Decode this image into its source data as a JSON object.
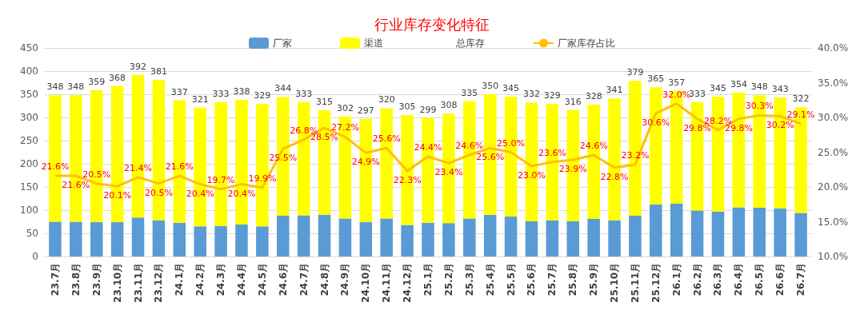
{
  "chart_data": {
    "type": "bar",
    "title": "行业库存变化特征",
    "stacked": true,
    "totals": [
      "348",
      "348",
      "359",
      "368",
      "392",
      "381",
      "337",
      "321",
      "333",
      "338",
      "329",
      "344",
      "333",
      "315",
      "302",
      "297",
      "320",
      "305",
      "299",
      "308",
      "335",
      "350",
      "345",
      "332",
      "329",
      "316",
      "328",
      "341",
      "379",
      "365",
      "357",
      "333",
      "345",
      "354",
      "348",
      "343",
      "322"
    ],
    "legend": "top",
    "grid": "y",
    "marker": "none",
    "categories": [
      "23.7月",
      "23.8月",
      "23.9月",
      "23.10月",
      "23.11月",
      "23.12月",
      "24.1月",
      "24.2月",
      "24.3月",
      "24.4月",
      "24.5月",
      "24.6月",
      "24.7月",
      "24.8月",
      "24.9月",
      "24.10月",
      "24.11月",
      "24.12月",
      "25.1月",
      "25.2月",
      "25.3月",
      "25.4月",
      "25.5月",
      "25.6月",
      "25.7月",
      "25.8月",
      "25.9月",
      "25.10月",
      "25.11月",
      "25.12月",
      "26.1月",
      "26.2月",
      "26.3月",
      "26.4月",
      "26.5月",
      "26.6月",
      "26.7月"
    ],
    "ylim": [
      0,
      450
    ],
    "yticks": [
      0,
      50,
      100,
      150,
      200,
      250,
      300,
      350,
      400,
      450
    ],
    "y2lim": [
      10,
      40
    ],
    "y2ticks": [
      {
        "value": 10,
        "label": "10.0%"
      },
      {
        "value": 15,
        "label": "15.0%"
      },
      {
        "value": 20,
        "label": "20.0%"
      },
      {
        "value": 25,
        "label": "25.0%"
      },
      {
        "value": 30,
        "label": "30.0%"
      },
      {
        "value": 35,
        "label": "35.0%"
      },
      {
        "value": 40,
        "label": "40.0%"
      }
    ],
    "series": [
      {
        "name": "厂家",
        "color": "#5b9bd5",
        "values": [
          75,
          75,
          74,
          74,
          84,
          78,
          73,
          65,
          66,
          69,
          65,
          88,
          89,
          90,
          82,
          74,
          82,
          68,
          73,
          72,
          82,
          90,
          86,
          76,
          78,
          76,
          81,
          78,
          88,
          112,
          114,
          99,
          97,
          106,
          105,
          104,
          94
        ]
      },
      {
        "name": "渠道",
        "color": "#ffff00",
        "values": [
          273,
          273,
          285,
          294,
          308,
          303,
          264,
          256,
          267,
          269,
          264,
          256,
          244,
          225,
          220,
          223,
          238,
          237,
          226,
          236,
          253,
          260,
          259,
          256,
          251,
          240,
          247,
          263,
          291,
          253,
          243,
          234,
          248,
          248,
          243,
          239,
          228
        ]
      },
      {
        "name": "总库存",
        "type": "line",
        "color": null,
        "values": [
          null,
          null,
          null,
          null,
          null,
          null,
          null,
          null,
          null,
          null,
          null,
          null,
          null,
          null,
          null,
          null,
          null,
          null,
          null,
          null,
          null,
          null,
          null,
          null,
          null,
          null,
          null,
          null,
          null,
          null,
          null,
          null,
          null,
          null,
          null,
          null,
          null
        ]
      },
      {
        "name": "厂家库存占比",
        "type": "line",
        "axis": "y2",
        "color": "#ffc000",
        "values": [
          21.6,
          21.6,
          20.5,
          20.1,
          21.4,
          20.5,
          21.6,
          20.4,
          19.7,
          20.4,
          19.9,
          25.5,
          26.8,
          28.5,
          27.2,
          24.9,
          25.6,
          22.3,
          24.4,
          23.4,
          24.6,
          25.6,
          25.0,
          23.0,
          23.6,
          23.9,
          24.6,
          22.8,
          23.2,
          30.6,
          32.0,
          29.8,
          28.2,
          29.8,
          30.3,
          30.2,
          29.1
        ],
        "value_labels": [
          "21.6%",
          "21.6%",
          "20.5%",
          "20.1%",
          "21.4%",
          "20.5%",
          "21.6%",
          "20.4%",
          "19.7%",
          "20.4%",
          "19.9%",
          "25.5%",
          "26.8%",
          "28.5%",
          "27.2%",
          "24.9%",
          "25.6%",
          "22.3%",
          "24.4%",
          "23.4%",
          "24.6%",
          "25.6%",
          "25.0%",
          "23.0%",
          "23.6%",
          "23.9%",
          "24.6%",
          "22.8%",
          "23.2%",
          "30.6%",
          "32.0%",
          "29.8%",
          "28.2%",
          "29.8%",
          "30.3%",
          "30.2%",
          "29.1%"
        ]
      }
    ]
  }
}
